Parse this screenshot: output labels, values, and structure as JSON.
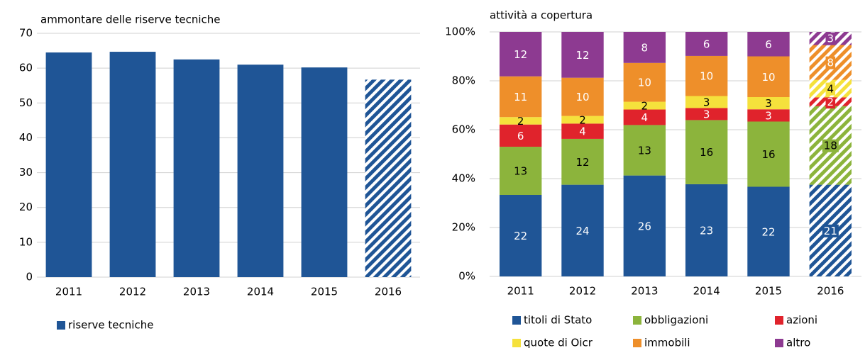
{
  "chart_data": [
    {
      "type": "bar",
      "title": "ammontare delle riserve tecniche",
      "categories": [
        "2011",
        "2012",
        "2013",
        "2014",
        "2015",
        "2016"
      ],
      "series": [
        {
          "name": "riserve tecniche",
          "color": "#1f5596",
          "values": [
            64.5,
            64.7,
            62.5,
            61.0,
            60.2,
            56.7
          ]
        }
      ],
      "hatched": [
        false,
        false,
        false,
        false,
        false,
        true
      ],
      "ylim": [
        0,
        70
      ],
      "yticks": [
        0,
        10,
        20,
        30,
        40,
        50,
        60,
        70
      ],
      "grid": true
    },
    {
      "type": "stacked_percent",
      "title": "attività a copertura",
      "categories": [
        "2011",
        "2012",
        "2013",
        "2014",
        "2015",
        "2016"
      ],
      "series": [
        {
          "name": "titoli di Stato",
          "color": "#1f5596",
          "values": [
            22,
            24,
            26,
            23,
            22,
            21
          ]
        },
        {
          "name": "obbligazioni",
          "color": "#8cb43c",
          "values": [
            13,
            12,
            13,
            16,
            16,
            18
          ]
        },
        {
          "name": "azioni",
          "color": "#e0232c",
          "values": [
            6,
            4,
            4,
            3,
            3,
            2
          ]
        },
        {
          "name": "quote di Oicr",
          "color": "#f5e13c",
          "values": [
            2,
            2,
            2,
            3,
            3,
            4
          ]
        },
        {
          "name": "immobili",
          "color": "#ee8f2a",
          "values": [
            11,
            10,
            10,
            10,
            10,
            8
          ]
        },
        {
          "name": "altro",
          "color": "#8d3a91",
          "values": [
            12,
            12,
            8,
            6,
            6,
            3
          ]
        }
      ],
      "hatched": [
        false,
        false,
        false,
        false,
        false,
        true
      ],
      "ylim": [
        0,
        100
      ],
      "yticks": [
        {
          "value": 0,
          "label": "0%"
        },
        {
          "value": 20,
          "label": "20%"
        },
        {
          "value": 40,
          "label": "40%"
        },
        {
          "value": 60,
          "label": "60%"
        },
        {
          "value": 80,
          "label": "80%"
        },
        {
          "value": 100,
          "label": "100%"
        }
      ],
      "grid": true
    }
  ]
}
